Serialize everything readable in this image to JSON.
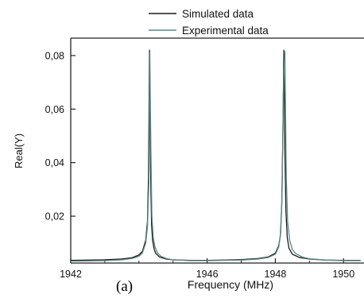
{
  "chart_data": {
    "type": "line",
    "panel_label": "(a)",
    "xlabel": "Frequency (MHz)",
    "ylabel": "Real(Y)",
    "xlim": [
      1942,
      1950.6
    ],
    "ylim": [
      0.0025,
      0.0865
    ],
    "grid": false,
    "legend_position": "top-center",
    "x_ticks": [
      1942,
      1946,
      1948,
      1950
    ],
    "x_tick_labels": [
      "1942",
      "1946",
      "1948",
      "1950"
    ],
    "y_ticks": [
      0.02,
      0.04,
      0.06,
      0.08
    ],
    "y_tick_labels": [
      "0,02",
      "0,04",
      "0,06",
      "0,08"
    ],
    "series": [
      {
        "name": "Simulated data",
        "color": "#1a1a1a",
        "x": [
          1942.0,
          1942.5,
          1943.0,
          1943.5,
          1943.8,
          1944.0,
          1944.1,
          1944.2,
          1944.25,
          1944.28,
          1944.31,
          1944.34,
          1944.37,
          1944.4,
          1944.45,
          1944.5,
          1944.6,
          1944.8,
          1945.0,
          1945.5,
          1946.0,
          1946.5,
          1947.0,
          1947.5,
          1947.8,
          1948.0,
          1948.1,
          1948.15,
          1948.19,
          1948.22,
          1948.25,
          1948.28,
          1948.31,
          1948.35,
          1948.4,
          1948.5,
          1948.7,
          1949.0,
          1949.5,
          1950.0,
          1950.5
        ],
        "values": [
          0.0035,
          0.0036,
          0.0037,
          0.004,
          0.0045,
          0.0055,
          0.0068,
          0.011,
          0.018,
          0.035,
          0.082,
          0.038,
          0.017,
          0.011,
          0.0075,
          0.006,
          0.0048,
          0.004,
          0.0037,
          0.0035,
          0.0035,
          0.0036,
          0.0038,
          0.0042,
          0.0048,
          0.0062,
          0.009,
          0.013,
          0.025,
          0.05,
          0.082,
          0.045,
          0.022,
          0.012,
          0.008,
          0.0058,
          0.0046,
          0.004,
          0.0036,
          0.0035,
          0.0035
        ]
      },
      {
        "name": "Experimental data",
        "color": "#5a8a86",
        "x": [
          1942.0,
          1942.5,
          1943.0,
          1943.5,
          1943.8,
          1944.0,
          1944.1,
          1944.2,
          1944.25,
          1944.29,
          1944.32,
          1944.35,
          1944.38,
          1944.42,
          1944.47,
          1944.55,
          1944.65,
          1944.8,
          1945.0,
          1945.5,
          1946.0,
          1946.5,
          1947.0,
          1947.5,
          1947.8,
          1948.0,
          1948.1,
          1948.16,
          1948.2,
          1948.24,
          1948.28,
          1948.32,
          1948.36,
          1948.42,
          1948.5,
          1948.6,
          1948.8,
          1949.0,
          1949.5,
          1950.0,
          1950.5
        ],
        "values": [
          0.0032,
          0.0033,
          0.0034,
          0.0037,
          0.0042,
          0.005,
          0.0062,
          0.01,
          0.016,
          0.032,
          0.081,
          0.045,
          0.02,
          0.012,
          0.0085,
          0.0062,
          0.005,
          0.0042,
          0.0037,
          0.0034,
          0.0034,
          0.0035,
          0.0036,
          0.004,
          0.0046,
          0.0058,
          0.0085,
          0.014,
          0.03,
          0.07,
          0.0815,
          0.035,
          0.018,
          0.011,
          0.0075,
          0.006,
          0.0047,
          0.0041,
          0.0036,
          0.0034,
          0.0034
        ]
      }
    ]
  }
}
